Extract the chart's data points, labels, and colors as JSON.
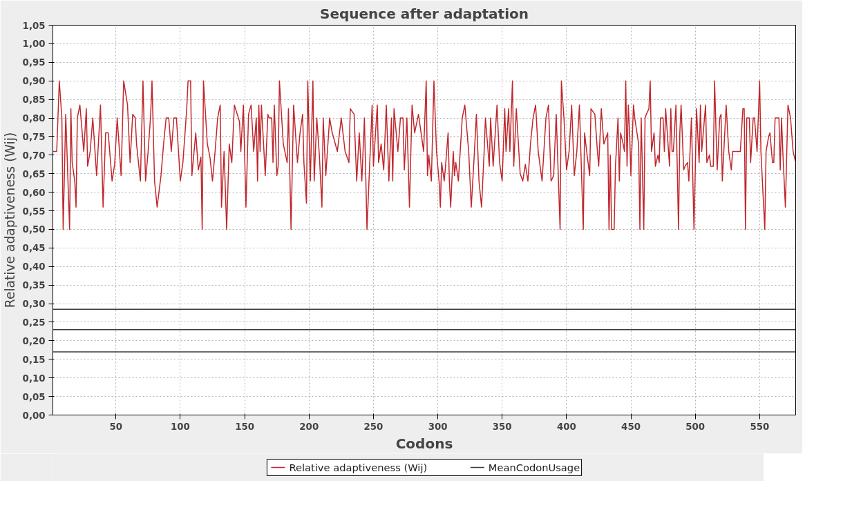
{
  "chart_data": {
    "type": "line",
    "title": "Sequence after adaptation",
    "xlabel": "Codons",
    "ylabel": "Relative adaptiveness (Wij)",
    "xlim": [
      1,
      578
    ],
    "xticks": [
      50,
      100,
      150,
      200,
      250,
      300,
      350,
      400,
      450,
      500,
      550
    ],
    "ylim": [
      0,
      1.05
    ],
    "yticks": [
      {
        "value": 0,
        "label": "0,00"
      },
      {
        "value": 0.05,
        "label": "0,05"
      },
      {
        "value": 0.1,
        "label": "0,10"
      },
      {
        "value": 0.15,
        "label": "0,15"
      },
      {
        "value": 0.2,
        "label": "0,20"
      },
      {
        "value": 0.25,
        "label": "0,25"
      },
      {
        "value": 0.3,
        "label": "0,30"
      },
      {
        "value": 0.35,
        "label": "0,35"
      },
      {
        "value": 0.4,
        "label": "0,40"
      },
      {
        "value": 0.45,
        "label": "0,45"
      },
      {
        "value": 0.5,
        "label": "0,50"
      },
      {
        "value": 0.55,
        "label": "0,55"
      },
      {
        "value": 0.6,
        "label": "0,60"
      },
      {
        "value": 0.65,
        "label": "0,65"
      },
      {
        "value": 0.7,
        "label": "0,70"
      },
      {
        "value": 0.75,
        "label": "0,75"
      },
      {
        "value": 0.8,
        "label": "0,80"
      },
      {
        "value": 0.85,
        "label": "0,85"
      },
      {
        "value": 0.9,
        "label": "0,90"
      },
      {
        "value": 0.95,
        "label": "0,95"
      },
      {
        "value": 1.0,
        "label": "1,00"
      },
      {
        "value": 1.05,
        "label": "1,05"
      }
    ],
    "grid": true,
    "legend": "bottom",
    "line_style": "solid",
    "series": [
      {
        "name": "Relative adaptiveness (Wij)",
        "color": "#c0282d",
        "x": [
          1,
          4,
          6,
          8,
          9,
          11,
          14,
          15,
          16,
          18,
          19,
          20,
          22,
          25,
          27,
          28,
          30,
          32,
          35,
          38,
          40,
          42,
          44,
          47,
          49,
          51,
          54,
          56,
          59,
          61,
          63,
          65,
          66,
          69,
          71,
          73,
          75,
          77,
          78,
          80,
          82,
          85,
          87,
          89,
          91,
          93,
          95,
          97,
          100,
          102,
          105,
          106,
          108,
          109,
          112,
          114,
          116,
          117,
          118,
          121,
          123,
          125,
          127,
          129,
          131,
          132,
          134,
          136,
          138,
          140,
          142,
          146,
          147,
          149,
          151,
          153,
          155,
          157,
          159,
          160,
          161,
          162,
          163,
          166,
          168,
          169,
          171,
          172,
          173,
          175,
          176,
          177,
          180,
          183,
          184,
          186,
          188,
          191,
          193,
          195,
          196,
          198,
          199,
          201,
          203,
          204,
          206,
          208,
          210,
          211,
          213,
          216,
          218,
          222,
          225,
          228,
          231,
          232,
          235,
          237,
          239,
          241,
          243,
          245,
          249,
          250,
          253,
          254,
          256,
          258,
          260,
          262,
          264,
          265,
          266,
          269,
          271,
          273,
          274,
          276,
          278,
          280,
          282,
          285,
          289,
          291,
          292,
          293,
          295,
          297,
          299,
          301,
          302,
          303,
          305,
          306,
          308,
          309,
          310,
          312,
          313,
          314,
          316,
          319,
          321,
          324,
          326,
          328,
          330,
          332,
          334,
          336,
          337,
          340,
          341,
          343,
          346,
          348,
          350,
          352,
          353,
          355,
          356,
          358,
          359,
          361,
          364,
          366,
          368,
          370,
          372,
          374,
          376,
          378,
          381,
          384,
          386,
          388,
          390,
          392,
          395,
          396,
          398,
          400,
          402,
          404,
          406,
          408,
          410,
          413,
          414,
          416,
          418,
          419,
          422,
          424,
          425,
          427,
          429,
          432,
          433,
          434,
          435,
          437,
          438,
          440,
          441,
          442,
          444,
          445,
          446,
          447,
          448,
          449,
          450,
          452,
          453,
          456,
          457,
          458,
          460,
          461,
          462,
          464,
          465,
          466,
          468,
          469,
          471,
          472,
          473,
          475,
          476,
          477,
          480,
          481,
          482,
          483,
          485,
          487,
          488,
          489,
          491,
          492,
          494,
          495,
          497,
          499,
          501,
          503,
          504,
          505,
          508,
          509,
          511,
          512,
          514,
          515,
          517,
          519,
          520,
          521,
          524,
          526,
          528,
          529,
          535,
          537,
          538,
          539,
          540,
          542,
          543,
          545,
          546,
          548,
          550,
          551,
          554,
          555,
          557,
          558,
          560,
          561,
          562,
          565,
          566,
          567,
          568,
          570,
          572,
          574,
          576,
          578
        ],
        "values": [
          0.71,
          0.71,
          0.9,
          0.8,
          0.5,
          0.81,
          0.5,
          0.825,
          0.68,
          0.63,
          0.56,
          0.8,
          0.835,
          0.71,
          0.825,
          0.67,
          0.71,
          0.8,
          0.645,
          0.835,
          0.56,
          0.76,
          0.76,
          0.63,
          0.675,
          0.8,
          0.645,
          0.9,
          0.835,
          0.68,
          0.81,
          0.8,
          0.73,
          0.63,
          0.9,
          0.63,
          0.71,
          0.81,
          0.9,
          0.63,
          0.56,
          0.645,
          0.73,
          0.8,
          0.8,
          0.71,
          0.8,
          0.8,
          0.63,
          0.68,
          0.825,
          0.9,
          0.9,
          0.645,
          0.76,
          0.66,
          0.695,
          0.5,
          0.9,
          0.73,
          0.695,
          0.63,
          0.71,
          0.8,
          0.835,
          0.56,
          0.71,
          0.5,
          0.73,
          0.68,
          0.835,
          0.79,
          0.71,
          0.835,
          0.56,
          0.81,
          0.835,
          0.71,
          0.8,
          0.63,
          0.835,
          0.71,
          0.835,
          0.645,
          0.81,
          0.8,
          0.8,
          0.68,
          0.835,
          0.645,
          0.67,
          0.9,
          0.73,
          0.68,
          0.825,
          0.5,
          0.835,
          0.68,
          0.76,
          0.81,
          0.68,
          0.57,
          0.9,
          0.63,
          0.9,
          0.63,
          0.8,
          0.7,
          0.56,
          0.8,
          0.645,
          0.8,
          0.76,
          0.71,
          0.8,
          0.71,
          0.68,
          0.825,
          0.81,
          0.63,
          0.76,
          0.63,
          0.8,
          0.5,
          0.835,
          0.67,
          0.835,
          0.68,
          0.73,
          0.66,
          0.835,
          0.63,
          0.8,
          0.63,
          0.825,
          0.71,
          0.8,
          0.8,
          0.66,
          0.8,
          0.56,
          0.835,
          0.76,
          0.81,
          0.71,
          0.9,
          0.645,
          0.7,
          0.63,
          0.9,
          0.71,
          0.63,
          0.56,
          0.68,
          0.63,
          0.67,
          0.76,
          0.63,
          0.56,
          0.71,
          0.645,
          0.68,
          0.63,
          0.8,
          0.835,
          0.71,
          0.56,
          0.68,
          0.81,
          0.63,
          0.56,
          0.71,
          0.8,
          0.67,
          0.8,
          0.67,
          0.835,
          0.68,
          0.63,
          0.825,
          0.71,
          0.825,
          0.71,
          0.9,
          0.67,
          0.825,
          0.65,
          0.63,
          0.675,
          0.63,
          0.73,
          0.8,
          0.835,
          0.71,
          0.63,
          0.8,
          0.835,
          0.63,
          0.645,
          0.81,
          0.5,
          0.9,
          0.8,
          0.66,
          0.71,
          0.835,
          0.645,
          0.71,
          0.835,
          0.5,
          0.76,
          0.7,
          0.645,
          0.825,
          0.81,
          0.71,
          0.67,
          0.825,
          0.73,
          0.76,
          0.5,
          0.7,
          0.5,
          0.5,
          0.67,
          0.8,
          0.63,
          0.76,
          0.73,
          0.71,
          0.9,
          0.67,
          0.835,
          0.76,
          0.645,
          0.835,
          0.8,
          0.73,
          0.5,
          0.8,
          0.5,
          0.8,
          0.81,
          0.825,
          0.9,
          0.71,
          0.76,
          0.67,
          0.7,
          0.68,
          0.8,
          0.8,
          0.71,
          0.825,
          0.67,
          0.825,
          0.71,
          0.71,
          0.835,
          0.5,
          0.76,
          0.835,
          0.66,
          0.67,
          0.68,
          0.63,
          0.8,
          0.5,
          0.825,
          0.68,
          0.835,
          0.71,
          0.835,
          0.68,
          0.7,
          0.67,
          0.67,
          0.9,
          0.66,
          0.8,
          0.81,
          0.63,
          0.835,
          0.71,
          0.66,
          0.71,
          0.71,
          0.825,
          0.825,
          0.5,
          0.8,
          0.8,
          0.68,
          0.8,
          0.8,
          0.71,
          0.9,
          0.71,
          0.5,
          0.71,
          0.75,
          0.76,
          0.68,
          0.68,
          0.8,
          0.8,
          0.66,
          0.8,
          0.71,
          0.56,
          0.835,
          0.8,
          0.71,
          0.68
        ]
      },
      {
        "name": "MeanCodonUsage",
        "color": "#3a3a3a",
        "x": [
          1,
          578
        ],
        "values": [
          0.285,
          0.285
        ]
      },
      {
        "color": "#3a3a3a",
        "x": [
          1,
          578
        ],
        "values": [
          0.23,
          0.23
        ]
      },
      {
        "color": "#3a3a3a",
        "x": [
          1,
          578
        ],
        "values": [
          0.17,
          0.17
        ]
      }
    ]
  }
}
